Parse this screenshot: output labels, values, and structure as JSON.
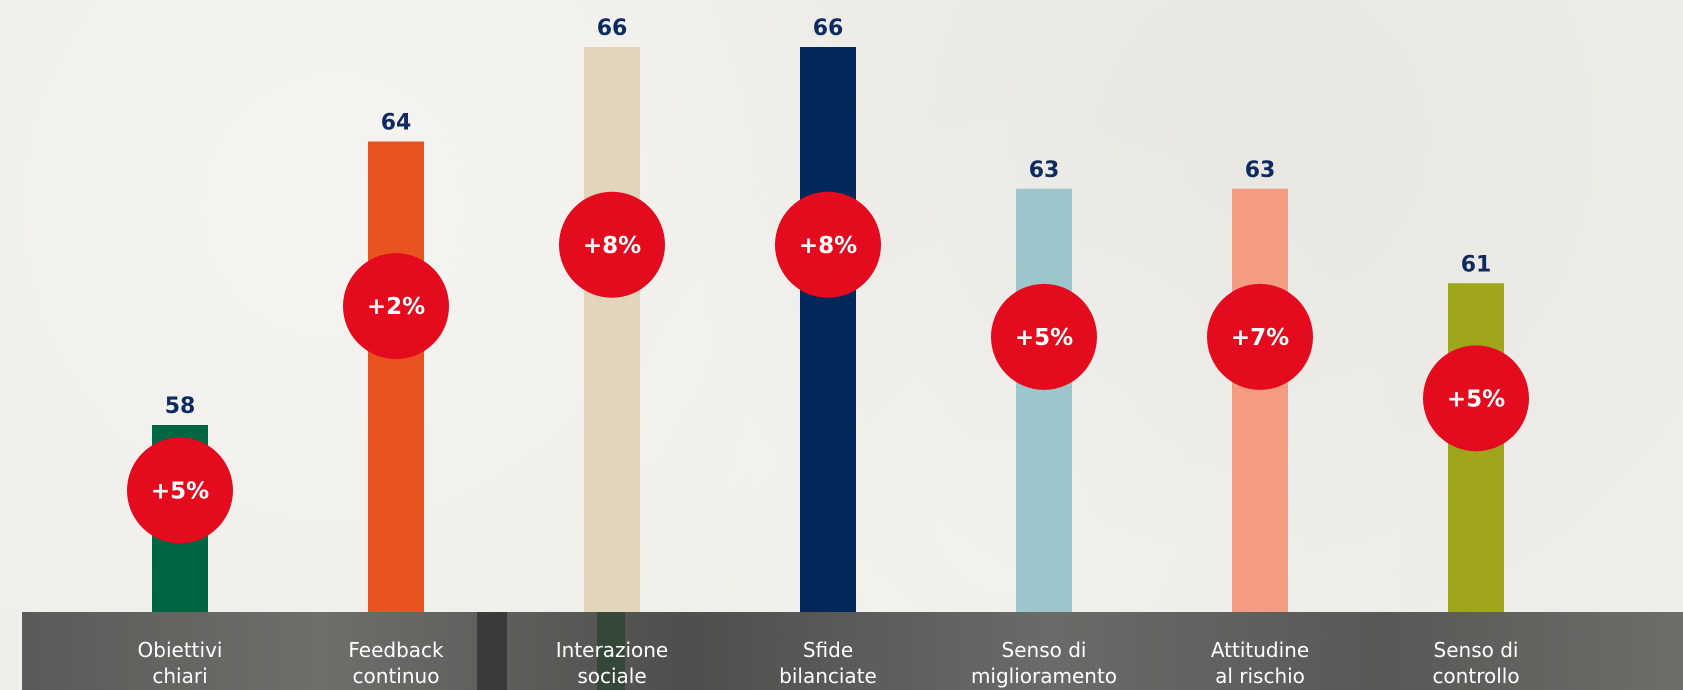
{
  "chart_data": {
    "type": "bar",
    "categories": [
      "Obiettivi\nchiari",
      "Feedback\ncontinuo",
      "Interazione\nsociale",
      "Sfide\nbilanciate",
      "Senso di\nmiglioramento",
      "Attitudine\nal rischio",
      "Senso di\ncontrollo"
    ],
    "values": [
      58,
      64,
      66,
      66,
      63,
      63,
      61
    ],
    "changes": [
      "+5%",
      "+2%",
      "+8%",
      "+8%",
      "+5%",
      "+7%",
      "+5%"
    ],
    "bar_colors": [
      "#006543",
      "#e9531f",
      "#e2d5bb",
      "#00285a",
      "#9cc6cc",
      "#f39c82",
      "#9fa61c"
    ],
    "value_label_color": "#0d2b5e",
    "change_circle_color": "#e30b1d",
    "change_text_color": "#ffffff",
    "title": "",
    "xlabel": "",
    "ylabel": "",
    "grid": false
  }
}
